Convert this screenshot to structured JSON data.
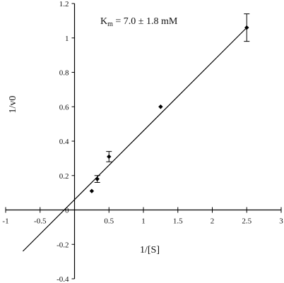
{
  "chart_data": {
    "type": "scatter",
    "xlabel": "1/[S]",
    "ylabel": "1/v0",
    "xlim": [
      -1,
      3
    ],
    "ylim": [
      -0.4,
      1.2
    ],
    "xticks": [
      -1,
      -0.5,
      0,
      0.5,
      1,
      1.5,
      2,
      2.5,
      3
    ],
    "xtick_labels": [
      "-1",
      "-0.5",
      "0",
      "0.5",
      "1",
      "1.5",
      "2",
      "2.5",
      "3"
    ],
    "yticks": [
      -0.4,
      -0.2,
      0,
      0.2,
      0.4,
      0.6,
      0.8,
      1,
      1.2
    ],
    "ytick_labels": [
      "-0.4",
      "-0.2",
      "0",
      "0.2",
      "0.4",
      "0.6",
      "0.8",
      "1",
      "1.2"
    ],
    "grid": false,
    "points": [
      {
        "x": 0.25,
        "y": 0.11,
        "err": null
      },
      {
        "x": 0.33,
        "y": 0.18,
        "err": 0.02
      },
      {
        "x": 0.5,
        "y": 0.31,
        "err": 0.03
      },
      {
        "x": 1.25,
        "y": 0.6,
        "err": null
      },
      {
        "x": 2.5,
        "y": 1.06,
        "err": 0.08
      }
    ],
    "fit_line": {
      "x0": -0.75,
      "y0": -0.24,
      "x1": 2.5,
      "y1": 1.06
    },
    "annotation": {
      "prefix": "K",
      "subscript": "m",
      "text": " = 7.0 ± 1.8 mM"
    }
  }
}
